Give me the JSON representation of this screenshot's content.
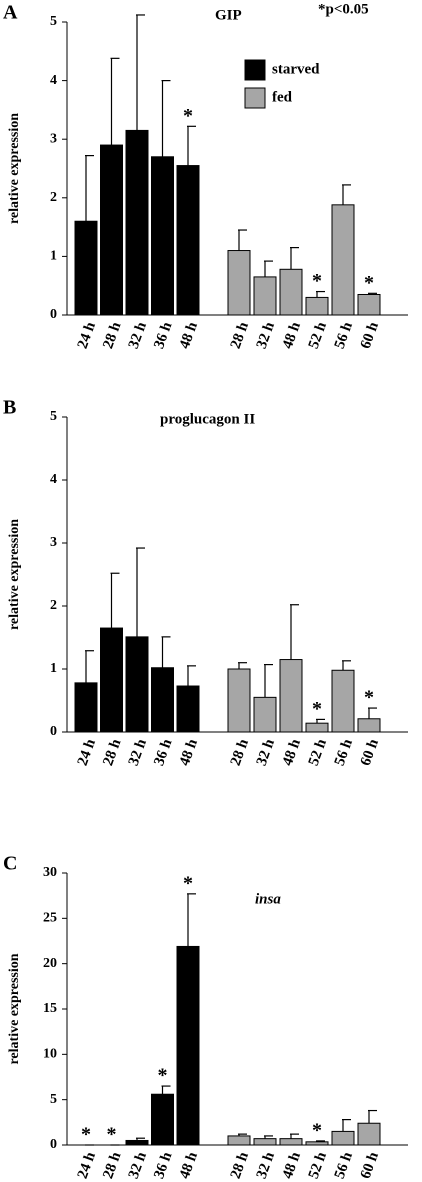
{
  "chart_data": [
    {
      "type": "bar",
      "panel": "A",
      "title": "GIP",
      "note": "*p<0.05",
      "ylabel": "relative expression",
      "categories": [
        "24 h",
        "28 h",
        "32 h",
        "36 h",
        "48 h",
        "28 h",
        "32 h",
        "48 h",
        "52 h",
        "56 h",
        "60 h"
      ],
      "ylim": [
        0,
        5
      ],
      "yticks": [
        0,
        1,
        2,
        3,
        4,
        5
      ],
      "legend": true,
      "title_style": "normal",
      "series": [
        {
          "name": "starved",
          "color": "#000000",
          "values": [
            1.6,
            2.9,
            3.15,
            2.7,
            2.55,
            null,
            null,
            null,
            null,
            null,
            null
          ],
          "errors": [
            1.12,
            1.48,
            1.97,
            1.3,
            0.67,
            null,
            null,
            null,
            null,
            null,
            null
          ],
          "annotations": [
            null,
            null,
            null,
            null,
            "*",
            null,
            null,
            null,
            null,
            null,
            null
          ]
        },
        {
          "name": "fed",
          "color": "#a6a6a6",
          "values": [
            null,
            null,
            null,
            null,
            null,
            1.1,
            0.65,
            0.78,
            0.3,
            1.88,
            0.35
          ],
          "errors": [
            null,
            null,
            null,
            null,
            null,
            0.35,
            0.27,
            0.37,
            0.1,
            0.34,
            0.02
          ],
          "annotations": [
            null,
            null,
            null,
            null,
            null,
            null,
            null,
            null,
            "*",
            null,
            "*"
          ]
        }
      ]
    },
    {
      "type": "bar",
      "panel": "B",
      "title": "proglucagon II",
      "ylabel": "relative expression",
      "categories": [
        "24 h",
        "28 h",
        "32 h",
        "36 h",
        "48 h",
        "28 h",
        "32 h",
        "48 h",
        "52 h",
        "56 h",
        "60 h"
      ],
      "ylim": [
        0,
        5
      ],
      "yticks": [
        0,
        1,
        2,
        3,
        4,
        5
      ],
      "legend": false,
      "title_style": "normal",
      "series": [
        {
          "name": "starved",
          "color": "#000000",
          "values": [
            0.78,
            1.65,
            1.51,
            1.02,
            0.73,
            null,
            null,
            null,
            null,
            null,
            null
          ],
          "errors": [
            0.51,
            0.87,
            1.41,
            0.49,
            0.32,
            null,
            null,
            null,
            null,
            null,
            null
          ],
          "annotations": [
            null,
            null,
            null,
            null,
            null,
            null,
            null,
            null,
            null,
            null,
            null
          ]
        },
        {
          "name": "fed",
          "color": "#a6a6a6",
          "values": [
            null,
            null,
            null,
            null,
            null,
            1.0,
            0.55,
            1.15,
            0.14,
            0.98,
            0.21
          ],
          "errors": [
            null,
            null,
            null,
            null,
            null,
            0.1,
            0.52,
            0.87,
            0.06,
            0.15,
            0.17
          ],
          "annotations": [
            null,
            null,
            null,
            null,
            null,
            null,
            null,
            null,
            "*",
            null,
            "*"
          ]
        }
      ]
    },
    {
      "type": "bar",
      "panel": "C",
      "title": "insa",
      "ylabel": "relative expression",
      "categories": [
        "24 h",
        "28 h",
        "32 h",
        "36 h",
        "48 h",
        "28 h",
        "32 h",
        "48 h",
        "52 h",
        "56 h",
        "60 h"
      ],
      "ylim": [
        0,
        30
      ],
      "yticks": [
        0,
        5,
        10,
        15,
        20,
        25,
        30
      ],
      "legend": false,
      "title_style": "italic",
      "series": [
        {
          "name": "starved",
          "color": "#000000",
          "values": [
            0,
            0,
            0.5,
            5.6,
            21.9,
            null,
            null,
            null,
            null,
            null,
            null
          ],
          "errors": [
            0,
            0,
            0.25,
            0.9,
            5.8,
            null,
            null,
            null,
            null,
            null,
            null
          ],
          "annotations": [
            "*",
            "*",
            null,
            "*",
            "*",
            null,
            null,
            null,
            null,
            null,
            null
          ]
        },
        {
          "name": "fed",
          "color": "#a6a6a6",
          "values": [
            null,
            null,
            null,
            null,
            null,
            1.0,
            0.7,
            0.7,
            0.35,
            1.5,
            2.4
          ],
          "errors": [
            null,
            null,
            null,
            null,
            null,
            0.2,
            0.3,
            0.5,
            0.1,
            1.3,
            1.4
          ],
          "annotations": [
            null,
            null,
            null,
            null,
            null,
            null,
            null,
            null,
            "*",
            null,
            null
          ]
        }
      ]
    }
  ]
}
